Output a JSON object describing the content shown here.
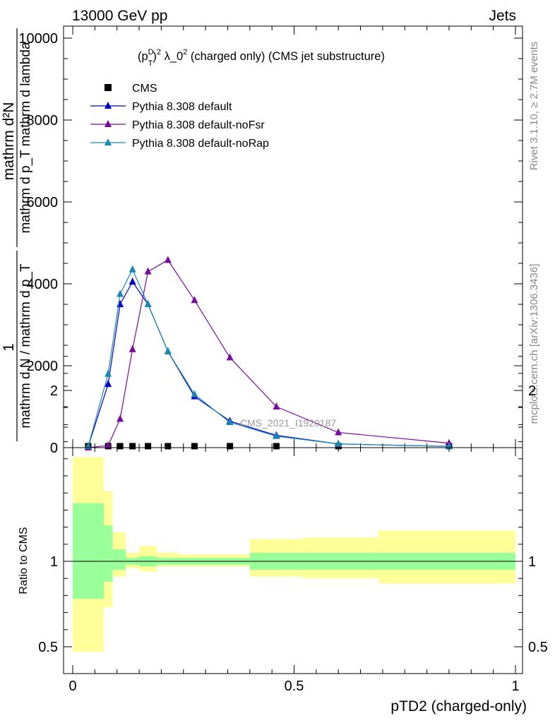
{
  "header": {
    "left": "13000 GeV pp",
    "right": "Jets"
  },
  "side_labels": {
    "rivet": "Rivet 3.1.10, ≥ 2.7M events",
    "mcplots": "mcplots.cern.ch [arXiv:1306.3436]"
  },
  "chart_data": {
    "type": "line",
    "title": "(p_T^D)^2 λ_0^2 (charged only) (CMS jet substructure)",
    "title_parts": {
      "open": "(p",
      "sup_d": "D",
      "sub_t": "T",
      "close": ")",
      "sup_2": "2",
      "lambda": " λ_0",
      "sup_2b": "2",
      "rest": " (charged only) (CMS jet substructure)"
    },
    "ylabel_lines": [
      "1",
      "mathrm d N / mathrm d p_T mathrm d p_T mathrm d lambda",
      "mathrm d²N"
    ],
    "ylabel_fraction_top": "mathrm d²N",
    "ylabel_fraction_bottom": "mathrm d p_T mathrm d lambda",
    "ylabel_prefix_top": "1",
    "ylabel_prefix_bottom": "mathrm d N / mathrm d p_T",
    "xlabel": "pTD2 (charged-only)",
    "ratio_ylabel": "Ratio to CMS",
    "watermark": "CMS_2021_I1920187",
    "xlim": [
      0,
      1
    ],
    "ylim": [
      0,
      10500
    ],
    "ratio_ylim": [
      0.4,
      2.3
    ],
    "x_ticks": [
      "0",
      "0.5",
      "1"
    ],
    "y_ticks": [
      "0",
      "2000",
      "4000",
      "6000",
      "8000",
      "10000"
    ],
    "ratio_y_ticks": [
      "0.5",
      "1",
      "2"
    ],
    "legend_position": "top-left",
    "series": [
      {
        "name": "CMS",
        "color": "#000000",
        "marker": "square",
        "x": [
          0.035,
          0.08,
          0.107,
          0.135,
          0.17,
          0.215,
          0.275,
          0.355,
          0.46,
          0.6,
          0.85
        ],
        "y": [
          10,
          10,
          10,
          10,
          10,
          10,
          10,
          10,
          10,
          10,
          10
        ]
      },
      {
        "name": "Pythia 8.308 default",
        "color": "#0000cc",
        "marker": "triangle",
        "x": [
          0.035,
          0.08,
          0.107,
          0.135,
          0.17,
          0.215,
          0.275,
          0.355,
          0.46,
          0.6,
          0.85
        ],
        "y": [
          30,
          1550,
          3500,
          4050,
          3500,
          2350,
          1250,
          650,
          300,
          90,
          30
        ]
      },
      {
        "name": "Pythia 8.308 default-noFsr",
        "color": "#7a0a9e",
        "marker": "triangle",
        "x": [
          0.035,
          0.08,
          0.107,
          0.135,
          0.17,
          0.215,
          0.275,
          0.355,
          0.46,
          0.6,
          0.85
        ],
        "y": [
          0,
          50,
          700,
          2400,
          4300,
          4580,
          3600,
          2200,
          1000,
          370,
          110
        ]
      },
      {
        "name": "Pythia 8.308 default-noRap",
        "color": "#1a88b0",
        "marker": "triangle",
        "x": [
          0.035,
          0.08,
          0.107,
          0.135,
          0.17,
          0.215,
          0.275,
          0.355,
          0.46,
          0.6,
          0.85
        ],
        "y": [
          30,
          1800,
          3750,
          4350,
          3500,
          2350,
          1300,
          620,
          280,
          90,
          30
        ]
      }
    ],
    "ratio_bands": {
      "edges": [
        0,
        0.07,
        0.09,
        0.12,
        0.15,
        0.19,
        0.24,
        0.4,
        0.52,
        0.69,
        1.0
      ],
      "stat_low": [
        0.78,
        0.88,
        0.95,
        0.98,
        0.97,
        0.98,
        0.98,
        0.95,
        0.95,
        0.95
      ],
      "stat_high": [
        1.34,
        1.21,
        1.07,
        1.02,
        1.03,
        1.02,
        1.02,
        1.05,
        1.05,
        1.05
      ],
      "tot_low": [
        0.47,
        0.73,
        0.91,
        0.96,
        0.94,
        0.97,
        0.97,
        0.91,
        0.9,
        0.87
      ],
      "tot_high": [
        1.61,
        1.41,
        1.17,
        1.05,
        1.09,
        1.05,
        1.04,
        1.13,
        1.14,
        1.18
      ],
      "stat_color": "#99ff99",
      "tot_color": "#ffff99"
    }
  }
}
